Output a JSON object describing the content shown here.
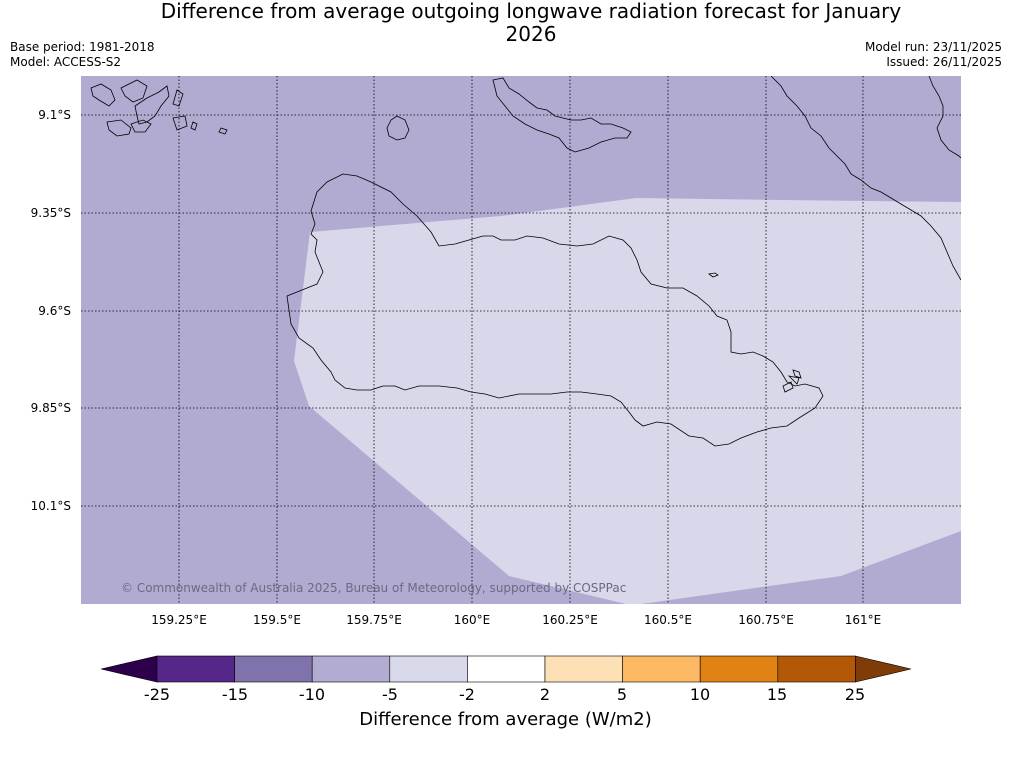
{
  "title": "Difference from average outgoing longwave radiation forecast for January 2026",
  "meta": {
    "base_period": "Base period: 1981-2018",
    "model": "Model: ACCESS-S2",
    "model_run": "Model run: 23/11/2025",
    "issued": "Issued: 26/11/2025"
  },
  "map": {
    "lat_labels": [
      "9.1°S",
      "9.35°S",
      "9.6°S",
      "9.85°S",
      "10.1°S"
    ],
    "lon_labels": [
      "159.25°E",
      "159.5°E",
      "159.75°E",
      "160°E",
      "160.25°E",
      "160.5°E",
      "160.75°E",
      "161°E"
    ],
    "credit": "© Commonwealth of Australia 2025, Bureau of Meteorology, supported by COSPPac",
    "colors": {
      "category_-10_-5": "#b1abd2",
      "category_-5_-2": "#d8d8ea",
      "coastline": "#000000",
      "gridline": "#000000"
    }
  },
  "colorbar": {
    "ticks": [
      "-25",
      "-15",
      "-10",
      "-5",
      "-2",
      "2",
      "5",
      "10",
      "15",
      "25"
    ],
    "colors": [
      "#2d004b",
      "#542788",
      "#8073ac",
      "#b2abd2",
      "#d8daeb",
      "#ffffff",
      "#fee0b6",
      "#fdb863",
      "#e08214",
      "#b35806",
      "#7f3b08"
    ],
    "label": "Difference from average (W/m2)"
  }
}
